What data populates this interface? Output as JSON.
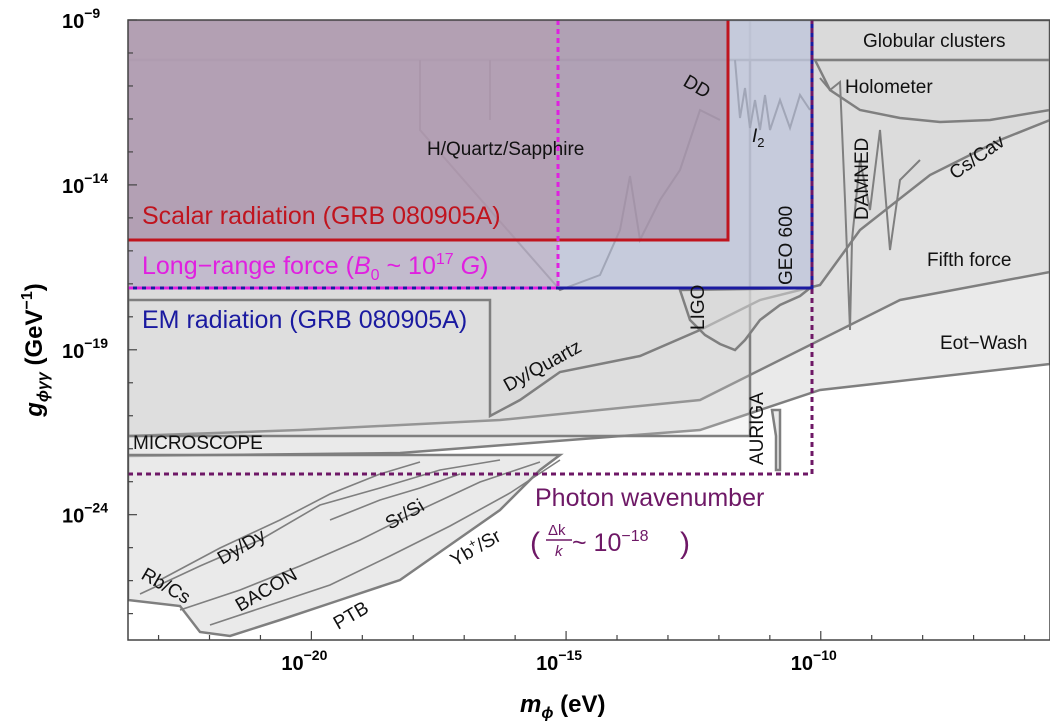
{
  "chart_data": {
    "type": "area",
    "title": "",
    "xlabel": {
      "base": "m",
      "sub": "ϕ",
      "unit": " (eV)"
    },
    "ylabel": {
      "base": "g",
      "sub": "ϕγγ",
      "unit": " (GeV",
      "sup": "−1",
      "close": ")"
    },
    "x_scale": "log",
    "y_scale": "log",
    "xlim_exp": [
      -23.6,
      -5.5
    ],
    "ylim_exp": [
      -27.8,
      -9
    ],
    "x_ticks": [
      {
        "exp": -20,
        "label": "10",
        "sup": "−20"
      },
      {
        "exp": -15,
        "label": "10",
        "sup": "−15"
      },
      {
        "exp": -10,
        "label": "10",
        "sup": "−10"
      }
    ],
    "y_ticks": [
      {
        "exp": -9,
        "label": "10",
        "sup": "−9"
      },
      {
        "exp": -14,
        "label": "10",
        "sup": "−14"
      },
      {
        "exp": -19,
        "label": "10",
        "sup": "−19"
      },
      {
        "exp": -24,
        "label": "10",
        "sup": "−24"
      }
    ],
    "colors": {
      "grey_fill": "#d9d9d9",
      "grey_line": "#7f7f7f",
      "scalar": "#c0141e",
      "longrange": "#e020e0",
      "em": "#1a1aa0",
      "photon": "#6e1866",
      "purple_fill": "#a58a9f",
      "blue_fill": "#b8bfdc"
    },
    "projections": [
      {
        "name": "Scalar radiation (GRB 080905A)",
        "y_exp": -15.6,
        "x_max_exp": -12.8
      },
      {
        "name": "Long-range force",
        "y_exp": -17.3,
        "x_max_exp": -15.8
      },
      {
        "name": "EM radiation (GRB 080905A)",
        "y_exp": -17.3,
        "x_max_exp": -11.0
      },
      {
        "name": "Photon wavenumber",
        "y_exp": -23.0,
        "x_max_exp": -11.0
      }
    ],
    "grey_labels": [
      "Globular clusters",
      "Holometer",
      "DD",
      "Cs/Cav",
      "H/Quartz/Sapphire",
      "DAMNED",
      "GEO 600",
      "LIGO",
      "Fifth force",
      "Eot−Wash",
      "Dy/Quartz",
      "AURIGA",
      "MICROSCOPE",
      "Dy/Dy",
      "Sr/Si",
      "Rb/Cs",
      "BACON",
      "PTB"
    ],
    "i2_label": {
      "base": "I",
      "sub": "2"
    },
    "yb_label": {
      "base": "Yb",
      "sup": "+",
      "rest": "/Sr"
    },
    "longrange_label": {
      "text": "Long−range force (",
      "b": "B",
      "sub": "0",
      "mid": " ~ 10",
      "sup": "17",
      "g": " G",
      "close": ")"
    },
    "photon_label": {
      "line1": "Photon wavenumber",
      "num": "Δk",
      "den": "k",
      "mid": " ~ 10",
      "sup": "−18",
      "open": "(",
      "close": ")"
    }
  }
}
